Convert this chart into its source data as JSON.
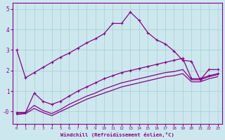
{
  "xlabel": "Windchill (Refroidissement éolien,°C)",
  "bg_color": "#cce8ee",
  "line_color": "#880088",
  "grid_color": "#aacccc",
  "series": [
    {
      "x": [
        0,
        1,
        2,
        3,
        4,
        5,
        6,
        7,
        8,
        9,
        10,
        11,
        12,
        13,
        14,
        15,
        16,
        17,
        18,
        19,
        20,
        21,
        22,
        23
      ],
      "y": [
        3.0,
        1.65,
        1.9,
        2.15,
        2.4,
        2.65,
        2.85,
        3.1,
        3.35,
        3.55,
        3.8,
        4.3,
        4.3,
        4.85,
        4.45,
        3.85,
        3.5,
        3.3,
        2.95,
        2.5,
        2.45,
        1.55,
        2.05,
        2.05
      ],
      "markers": true
    },
    {
      "x": [
        0,
        1,
        2,
        3,
        4,
        5,
        6,
        7,
        8,
        9,
        10,
        11,
        12,
        13,
        14,
        15,
        16,
        17,
        18,
        19,
        20,
        21,
        22,
        23
      ],
      "y": [
        -0.05,
        -0.05,
        0.9,
        0.5,
        0.35,
        0.5,
        0.75,
        1.0,
        1.2,
        1.4,
        1.6,
        1.75,
        1.9,
        2.0,
        2.1,
        2.2,
        2.3,
        2.4,
        2.5,
        2.6,
        1.6,
        1.6,
        1.75,
        1.85
      ],
      "markers": true
    },
    {
      "x": [
        0,
        1,
        2,
        3,
        4,
        5,
        6,
        7,
        8,
        9,
        10,
        11,
        12,
        13,
        14,
        15,
        16,
        17,
        18,
        19,
        20,
        21,
        22,
        23
      ],
      "y": [
        -0.1,
        -0.05,
        0.3,
        0.05,
        -0.1,
        0.1,
        0.35,
        0.55,
        0.75,
        0.9,
        1.1,
        1.25,
        1.4,
        1.5,
        1.6,
        1.7,
        1.8,
        1.9,
        1.95,
        2.05,
        1.55,
        1.55,
        1.7,
        1.8
      ],
      "markers": false
    },
    {
      "x": [
        0,
        1,
        2,
        3,
        4,
        5,
        6,
        7,
        8,
        9,
        10,
        11,
        12,
        13,
        14,
        15,
        16,
        17,
        18,
        19,
        20,
        21,
        22,
        23
      ],
      "y": [
        -0.15,
        -0.1,
        0.15,
        -0.05,
        -0.2,
        0.0,
        0.2,
        0.4,
        0.6,
        0.75,
        0.9,
        1.05,
        1.2,
        1.3,
        1.4,
        1.5,
        1.6,
        1.7,
        1.75,
        1.85,
        1.45,
        1.45,
        1.6,
        1.7
      ],
      "markers": false
    }
  ],
  "ylim": [
    -0.6,
    5.3
  ],
  "xlim": [
    -0.5,
    23.5
  ],
  "yticks": [
    0,
    1,
    2,
    3,
    4,
    5
  ],
  "ytick_labels": [
    "-0",
    "1",
    "2",
    "3",
    "4",
    "5"
  ]
}
